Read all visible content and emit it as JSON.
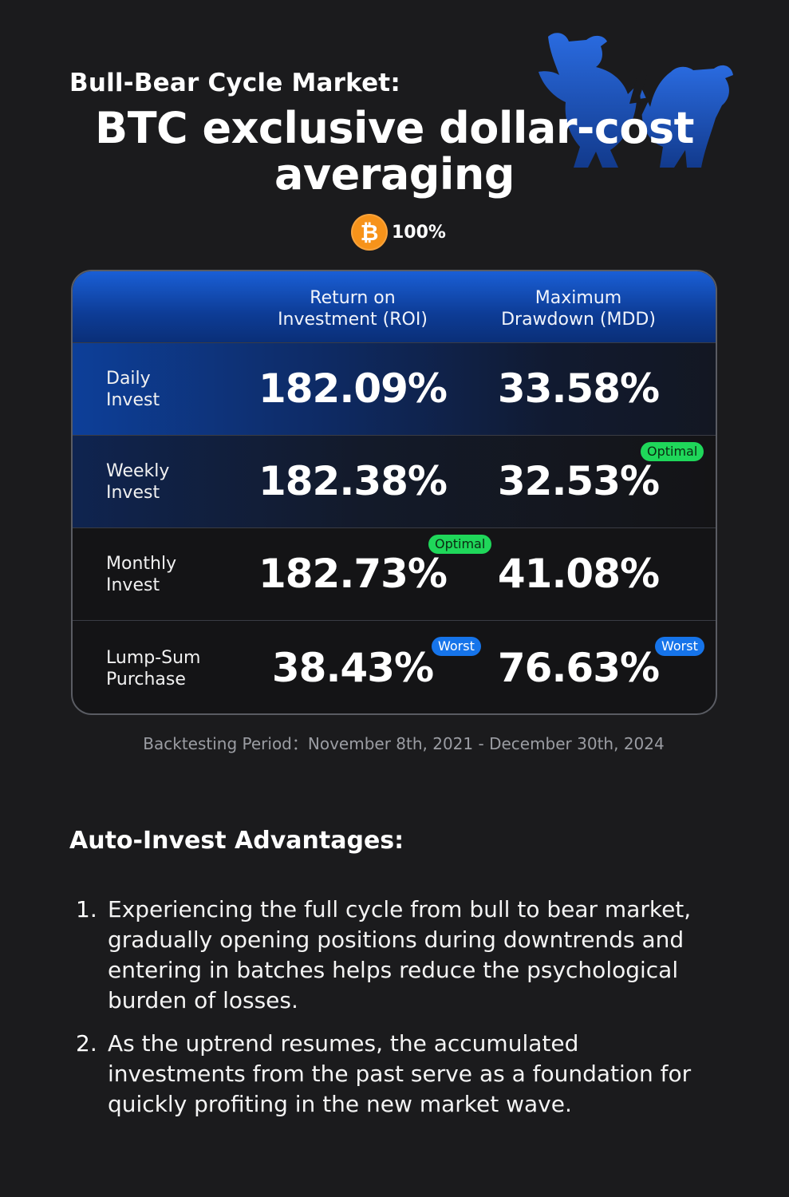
{
  "header": {
    "subtitle": "Bull-Bear Cycle Market:",
    "title_line1": "BTC exclusive dollar-cost",
    "title_line2": "averaging",
    "coin_symbol": "₿",
    "allocation": "100%"
  },
  "table": {
    "columns": [
      "Return on Investment (ROI)",
      "Maximum Drawdown (MDD)"
    ],
    "column_lines": [
      [
        "Return on",
        "Investment (ROI)"
      ],
      [
        "Maximum",
        "Drawdown (MDD)"
      ]
    ],
    "rows": [
      {
        "label_lines": [
          "Daily",
          "Invest"
        ],
        "roi": "182.09%",
        "mdd": "33.58%"
      },
      {
        "label_lines": [
          "Weekly",
          "Invest"
        ],
        "roi": "182.38%",
        "mdd": "32.53%",
        "mdd_badge": "Optimal"
      },
      {
        "label_lines": [
          "Monthly",
          "Invest"
        ],
        "roi": "182.73%",
        "mdd": "41.08%",
        "roi_badge": "Optimal"
      },
      {
        "label_lines": [
          "Lump-Sum",
          "Purchase"
        ],
        "roi": "38.43%",
        "mdd": "76.63%",
        "roi_badge": "Worst",
        "mdd_badge": "Worst"
      }
    ]
  },
  "footnote": "Backtesting Period：November 8th, 2021 - December 30th, 2024",
  "advantages": {
    "title": "Auto-Invest Advantages:",
    "items": [
      {
        "num": "1.",
        "text": "Experiencing the full cycle from bull to bear market, gradually opening positions during downtrends and entering in batches helps reduce the psychological burden of losses."
      },
      {
        "num": "2.",
        "text": "As the uptrend resumes, the accumulated investments from the past serve as a foundation for quickly profiting in the new market wave."
      }
    ]
  },
  "colors": {
    "background": "#1b1b1d",
    "header_blue": "#1a5fd6",
    "bitcoin_orange": "#f7931a",
    "optimal_green": "#1fd75a",
    "worst_blue": "#1674ea",
    "logo_blue": "#1e57c8"
  },
  "icons": {
    "logo": "bull-bear-logo",
    "coin": "bitcoin-icon"
  }
}
